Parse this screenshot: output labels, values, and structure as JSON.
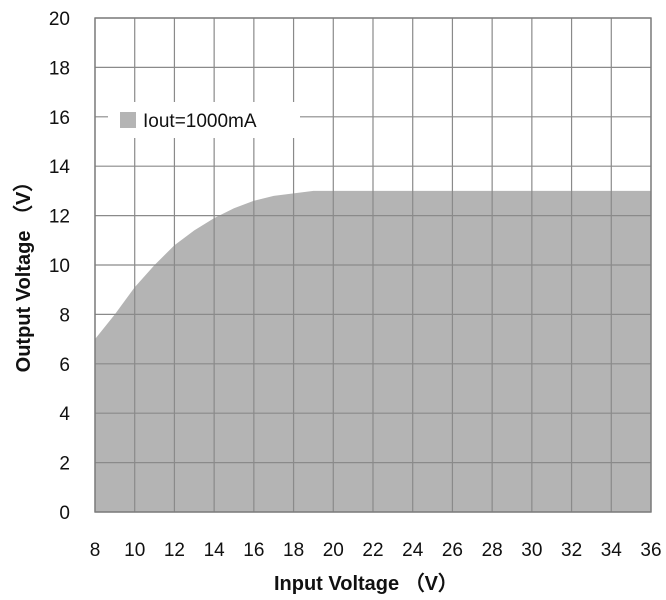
{
  "chart_data": {
    "type": "area",
    "title": "",
    "xlabel": "Input Voltage （V）",
    "ylabel": "Output Voltage （V）",
    "xlim": [
      8,
      36
    ],
    "ylim": [
      0,
      20
    ],
    "xticks": [
      8,
      10,
      12,
      14,
      16,
      18,
      20,
      22,
      24,
      26,
      28,
      30,
      32,
      34,
      36
    ],
    "yticks": [
      0,
      2,
      4,
      6,
      8,
      10,
      12,
      14,
      16,
      18,
      20
    ],
    "grid": true,
    "legend_position": "top-left",
    "series": [
      {
        "name": "Iout=1000mA",
        "color": "#b4b4b4",
        "x": [
          8,
          9,
          10,
          11,
          12,
          13,
          14,
          15,
          16,
          17,
          18,
          19,
          20,
          22,
          24,
          26,
          28,
          30,
          32,
          34,
          36
        ],
        "y": [
          7.0,
          8.0,
          9.1,
          10.0,
          10.8,
          11.4,
          11.9,
          12.3,
          12.6,
          12.8,
          12.9,
          13.0,
          13.0,
          13.0,
          13.0,
          13.0,
          13.0,
          13.0,
          13.0,
          13.0,
          13.0
        ]
      }
    ]
  }
}
